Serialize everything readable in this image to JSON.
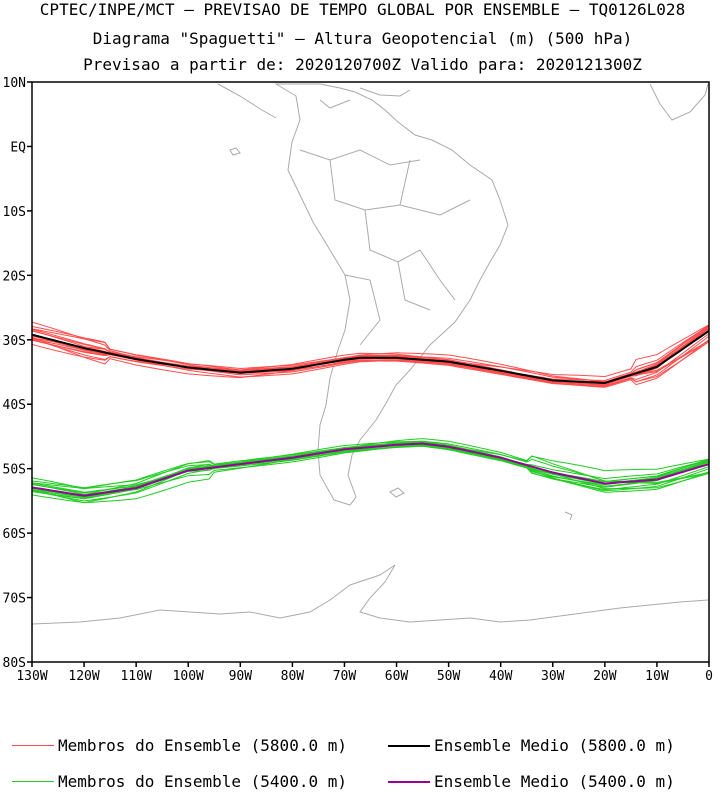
{
  "header": {
    "line1": "CPTEC/INPE/MCT — PREVISAO DE TEMPO GLOBAL POR ENSEMBLE — TQ0126L028",
    "line2": "Diagrama \"Spaguetti\" — Altura Geopotencial (m) (500 hPa)",
    "line3": "Previsao a partir de: 2020120700Z  Valido para: 2020121300Z"
  },
  "colors": {
    "members_5800": "#ff4d4d",
    "mean_5800": "#000000",
    "members_5400": "#22cc22",
    "mean_5400": "#990099",
    "coastline": "#aaaaaa"
  },
  "chart_data": {
    "type": "line",
    "xlim": [
      -130,
      0
    ],
    "ylim": [
      -80,
      10
    ],
    "x_ticks": [
      "130W",
      "120W",
      "110W",
      "100W",
      "90W",
      "80W",
      "70W",
      "60W",
      "50W",
      "40W",
      "30W",
      "20W",
      "10W",
      "0"
    ],
    "y_ticks": [
      "10N",
      "EQ",
      "10S",
      "20S",
      "30S",
      "40S",
      "50S",
      "60S",
      "70S",
      "80S"
    ],
    "x_tick_values": [
      -130,
      -120,
      -110,
      -100,
      -90,
      -80,
      -70,
      -60,
      -50,
      -40,
      -30,
      -20,
      -10,
      0
    ],
    "y_tick_values": [
      10,
      0,
      -10,
      -20,
      -30,
      -40,
      -50,
      -60,
      -70,
      -80
    ],
    "mean_5800": {
      "name": "Ensemble Medio (5800.0 m)",
      "lon": [
        -130,
        -120,
        -110,
        -100,
        -90,
        -80,
        -70,
        -67,
        -60,
        -50,
        -40,
        -30,
        -20,
        -10,
        0
      ],
      "lat": [
        -29.2,
        -31.3,
        -33,
        -34.3,
        -35.1,
        -34.5,
        -33.1,
        -32.8,
        -32.8,
        -33.4,
        -34.8,
        -36.3,
        -36.7,
        -34.2,
        -28.6
      ]
    },
    "mean_5400": {
      "name": "Ensemble Medio (5400.0 m)",
      "lon": [
        -130,
        -120,
        -110,
        -100,
        -90,
        -80,
        -70,
        -60,
        -55,
        -50,
        -40,
        -30,
        -20,
        -10,
        0
      ],
      "lat": [
        -52.9,
        -54.2,
        -53,
        -50.3,
        -49.3,
        -48.3,
        -47,
        -46.3,
        -46.1,
        -46.6,
        -48.3,
        -50.6,
        -52.3,
        -51.7,
        -49.3
      ]
    },
    "members_5800": {
      "name": "Membros do Ensemble (5800.0 m)",
      "count": 16
    },
    "members_5400": {
      "name": "Membros do Ensemble (5400.0 m)",
      "count": 16
    }
  },
  "legend": {
    "members_5800": "Membros do Ensemble (5800.0 m)",
    "mean_5800": "Ensemble Medio (5800.0 m)",
    "members_5400": "Membros do Ensemble (5400.0 m)",
    "mean_5400": "Ensemble Medio (5400.0 m)"
  }
}
